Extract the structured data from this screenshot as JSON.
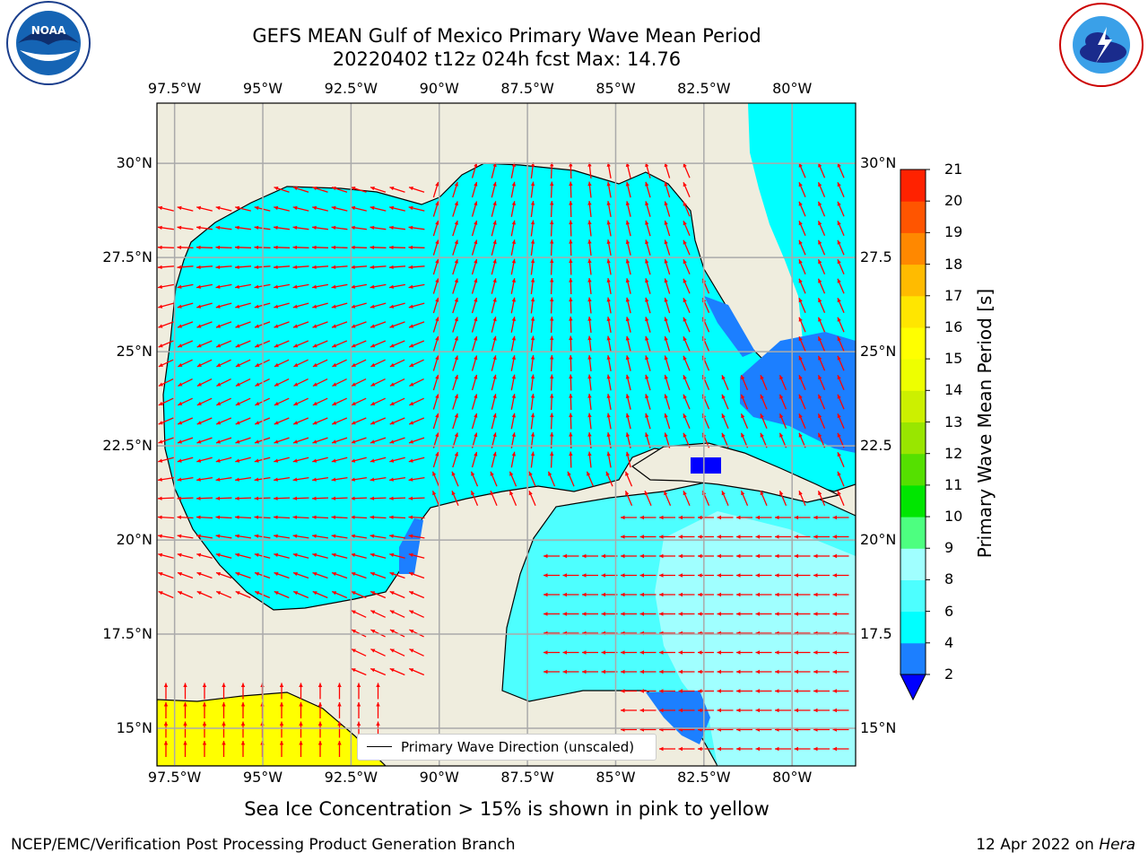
{
  "header": {
    "title_line1": "GEFS MEAN Gulf of Mexico Primary Wave Mean Period",
    "title_line2": "20220402 t12z 024h fcst   Max: 14.76"
  },
  "map": {
    "lon_ticks": [
      "97.5°W",
      "95°W",
      "92.5°W",
      "90°W",
      "87.5°W",
      "85°W",
      "82.5°W",
      "80°W"
    ],
    "lat_ticks_left": [
      "30°N",
      "27.5°N",
      "25°N",
      "22.5°N",
      "20°N",
      "17.5°N",
      "15°N"
    ],
    "lat_ticks_right": [
      "30°N",
      "27.5",
      "25°N",
      "22.5",
      "20°N",
      "17.5",
      "15°N"
    ],
    "lon_range": [
      -98,
      -78.2
    ],
    "lat_range": [
      14,
      31.6
    ],
    "colors": {
      "land": "#efedde",
      "ocean_main": "#00ffff",
      "ocean_light": "#4dffff",
      "ocean_pale": "#a0ffff",
      "ocean_blue": "#1c7fff",
      "arrow": "#ff0000",
      "ice": "#ffff00"
    }
  },
  "legend": {
    "label": "Primary Wave Direction (unscaled)"
  },
  "colorbar": {
    "label": "Primary Wave Mean Period [s]",
    "ticks": [
      "2",
      "4",
      "6",
      "8",
      "9",
      "10",
      "11",
      "12",
      "13",
      "14",
      "15",
      "16",
      "17",
      "18",
      "19",
      "20",
      "21"
    ],
    "colors": [
      "#1c7fff",
      "#00ffff",
      "#4dffff",
      "#a0ffff",
      "#4dff80",
      "#00e600",
      "#55e000",
      "#99e600",
      "#ccf000",
      "#eeff00",
      "#ffff00",
      "#ffe600",
      "#ffbb00",
      "#ff8800",
      "#ff5500",
      "#ff2200"
    ],
    "under_color": "#0000ff"
  },
  "notes": {
    "sea_ice": "Sea Ice Concentration > 15% is shown in pink to yellow"
  },
  "footer": {
    "left": "NCEP/EMC/Verification Post Processing Product Generation Branch",
    "date": "12 Apr 2022 on ",
    "host": "Hera"
  }
}
